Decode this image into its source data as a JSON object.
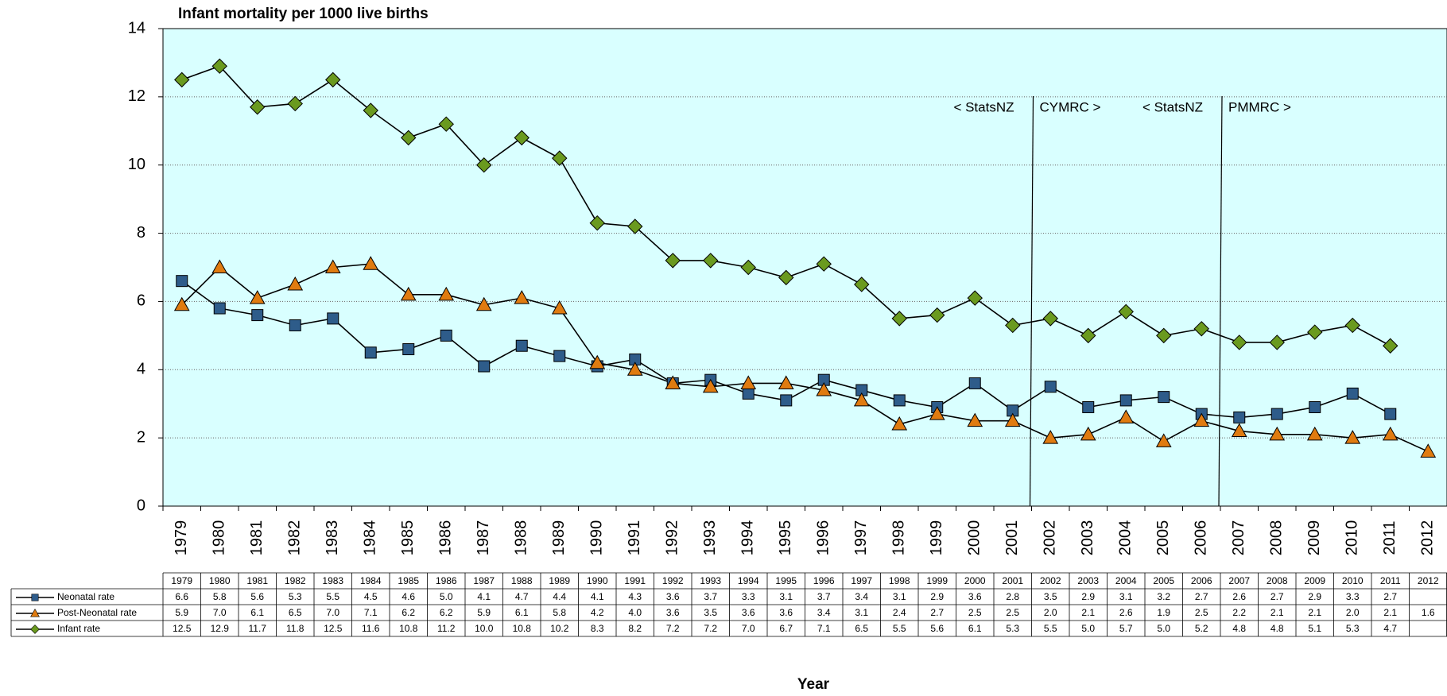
{
  "chart_data": {
    "type": "line",
    "title": "Infant mortality per 1000 live births",
    "x_label": "Year",
    "x": [
      1979,
      1980,
      1981,
      1982,
      1983,
      1984,
      1985,
      1986,
      1987,
      1988,
      1989,
      1990,
      1991,
      1992,
      1993,
      1994,
      1995,
      1996,
      1997,
      1998,
      1999,
      2000,
      2001,
      2002,
      2003,
      2004,
      2005,
      2006,
      2007,
      2008,
      2009,
      2010,
      2011,
      2012
    ],
    "ylim": [
      0,
      14
    ],
    "yticks": [
      0,
      2,
      4,
      6,
      8,
      10,
      12,
      14
    ],
    "grid": true,
    "background": "#d9ffff",
    "series": [
      {
        "name": "Neonatal rate",
        "color": "#2e5c8a",
        "marker": "square",
        "values": [
          6.6,
          5.8,
          5.6,
          5.3,
          5.5,
          4.5,
          4.6,
          5.0,
          4.1,
          4.7,
          4.4,
          4.1,
          4.3,
          3.6,
          3.7,
          3.3,
          3.1,
          3.7,
          3.4,
          3.1,
          2.9,
          3.6,
          2.8,
          3.5,
          2.9,
          3.1,
          3.2,
          2.7,
          2.6,
          2.7,
          2.9,
          3.3,
          2.7,
          null
        ],
        "value_labels": [
          "6.6",
          "5.8",
          "5.6",
          "5.3",
          "5.5",
          "4.5",
          "4.6",
          "5.0",
          "4.1",
          "4.7",
          "4.4",
          "4.1",
          "4.3",
          "3.6",
          "3.7",
          "3.3",
          "3.1",
          "3.7",
          "3.4",
          "3.1",
          "2.9",
          "3.6",
          "2.8",
          "3.5",
          "2.9",
          "3.1",
          "3.2",
          "2.7",
          "2.6",
          "2.7",
          "2.9",
          "3.3",
          "2.7",
          null
        ]
      },
      {
        "name": "Post-Neonatal rate",
        "color": "#e07b10",
        "marker": "triangle",
        "values": [
          5.9,
          7.0,
          6.1,
          6.5,
          7.0,
          7.1,
          6.2,
          6.2,
          5.9,
          6.1,
          5.8,
          4.2,
          4.0,
          3.6,
          3.5,
          3.6,
          3.6,
          3.4,
          3.1,
          2.4,
          2.7,
          2.5,
          2.5,
          2.0,
          2.1,
          2.6,
          1.9,
          2.5,
          2.2,
          2.1,
          2.1,
          2.0,
          2.1,
          1.6
        ],
        "value_labels": [
          "5.9",
          "7.0",
          "6.1",
          "6.5",
          "7.0",
          "7.1",
          "6.2",
          "6.2",
          "5.9",
          "6.1",
          "5.8",
          "4.2",
          "4.0",
          "3.6",
          "3.5",
          "3.6",
          "3.6",
          "3.4",
          "3.1",
          "2.4",
          "2.7",
          "2.5",
          "2.5",
          "2.0",
          "2.1",
          "2.6",
          "1.9",
          "2.5",
          "2.2",
          "2.1",
          "2.1",
          "2.0",
          "2.1",
          "1.6"
        ]
      },
      {
        "name": "Infant rate",
        "color": "#6a9a1f",
        "marker": "diamond",
        "values": [
          12.5,
          12.9,
          11.7,
          11.8,
          12.5,
          11.6,
          10.8,
          11.2,
          10.0,
          10.8,
          10.2,
          8.3,
          8.2,
          7.2,
          7.2,
          7.0,
          6.7,
          7.1,
          6.5,
          5.5,
          5.6,
          6.1,
          5.3,
          5.5,
          5.0,
          5.7,
          5.0,
          5.2,
          4.8,
          4.8,
          5.1,
          5.3,
          4.7,
          null
        ],
        "value_labels": [
          "12.5",
          "12.9",
          "11.7",
          "11.8",
          "12.5",
          "11.6",
          "10.8",
          "11.2",
          "10.0",
          "10.8",
          "10.2",
          "8.3",
          "8.2",
          "7.2",
          "7.2",
          "7.0",
          "6.7",
          "7.1",
          "6.5",
          "5.5",
          "5.6",
          "6.1",
          "5.3",
          "5.5",
          "5.0",
          "5.7",
          "5.0",
          "5.2",
          "4.8",
          "4.8",
          "5.1",
          "5.3",
          "4.7",
          null
        ]
      }
    ],
    "dividers": [
      {
        "after": 2001,
        "left_label": "< StatsNZ",
        "right_label": "CYMRC >"
      },
      {
        "after": 2006,
        "left_label": "< StatsNZ",
        "right_label": "PMMRC >"
      }
    ]
  }
}
